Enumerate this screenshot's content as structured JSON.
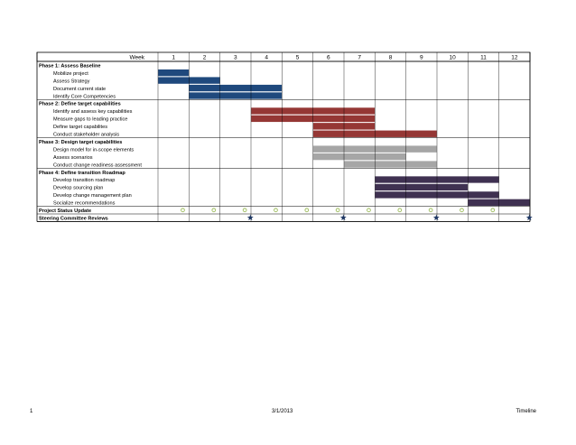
{
  "week_label": "Week",
  "weeks": [
    "1",
    "2",
    "3",
    "4",
    "5",
    "6",
    "7",
    "8",
    "9",
    "10",
    "11",
    "12"
  ],
  "colors": {
    "phase1": "#1f497d",
    "phase2": "#953735",
    "phase3": "#a6a6a6",
    "phase4": "#3f3151",
    "marker_circle": "#9bbb59",
    "marker_star": "#1f3864"
  },
  "rows": [
    {
      "label": "Phase 1:  Assess Baseline",
      "type": "phase"
    },
    {
      "label": "Mobilize project",
      "type": "task",
      "color": "phase1",
      "start": 1,
      "end": 2
    },
    {
      "label": "Assess Strategy",
      "type": "task",
      "color": "phase1",
      "start": 1,
      "end": 3
    },
    {
      "label": "Document current state",
      "type": "task",
      "color": "phase1",
      "start": 2,
      "end": 5
    },
    {
      "label": "Identify Core Competencies",
      "type": "task",
      "color": "phase1",
      "start": 2,
      "end": 5
    },
    {
      "label": "Phase 2: Define target capabilities",
      "type": "phase"
    },
    {
      "label": "Identify and assess key capabilities",
      "type": "task",
      "color": "phase2",
      "start": 4,
      "end": 8
    },
    {
      "label": "Measure gaps to leading practice",
      "type": "task",
      "color": "phase2",
      "start": 4,
      "end": 8
    },
    {
      "label": "Define target capabilites",
      "type": "task",
      "color": "phase2",
      "start": 6,
      "end": 8
    },
    {
      "label": "Conduct stakeholder analysis",
      "type": "task",
      "color": "phase2",
      "start": 6,
      "end": 10
    },
    {
      "label": "Phase 3: Design target capabilities",
      "type": "phase"
    },
    {
      "label": "Design model for in-scope elements",
      "type": "task",
      "color": "phase3",
      "start": 6,
      "end": 10
    },
    {
      "label": "Assess scenarios",
      "type": "task",
      "color": "phase3",
      "start": 6,
      "end": 9
    },
    {
      "label": "Conduct change readiness assessment",
      "type": "task",
      "color": "phase3",
      "start": 7,
      "end": 10
    },
    {
      "label": "Phase 4: Define transition Roadmap",
      "type": "phase"
    },
    {
      "label": "Develop transition roadmap",
      "type": "task",
      "color": "phase4",
      "start": 8,
      "end": 12
    },
    {
      "label": "Develop sourcing plan",
      "type": "task",
      "color": "phase4",
      "start": 8,
      "end": 11
    },
    {
      "label": "Develop change management plan",
      "type": "task",
      "color": "phase4",
      "start": 8,
      "end": 12
    },
    {
      "label": "Socialize recommendations",
      "type": "task",
      "color": "phase4",
      "start": 11,
      "end": 13
    },
    {
      "label": "Project Status Update",
      "type": "milestone",
      "marker": "circle",
      "weeks": [
        1,
        2,
        3,
        4,
        5,
        6,
        7,
        8,
        9,
        10,
        11
      ]
    },
    {
      "label": "Steering Committee Reviews",
      "type": "milestone",
      "marker": "star",
      "weeks": [
        3,
        6,
        9,
        12
      ]
    }
  ],
  "footer": {
    "page": "1",
    "date": "3/1/2013",
    "title": "Timeline"
  }
}
